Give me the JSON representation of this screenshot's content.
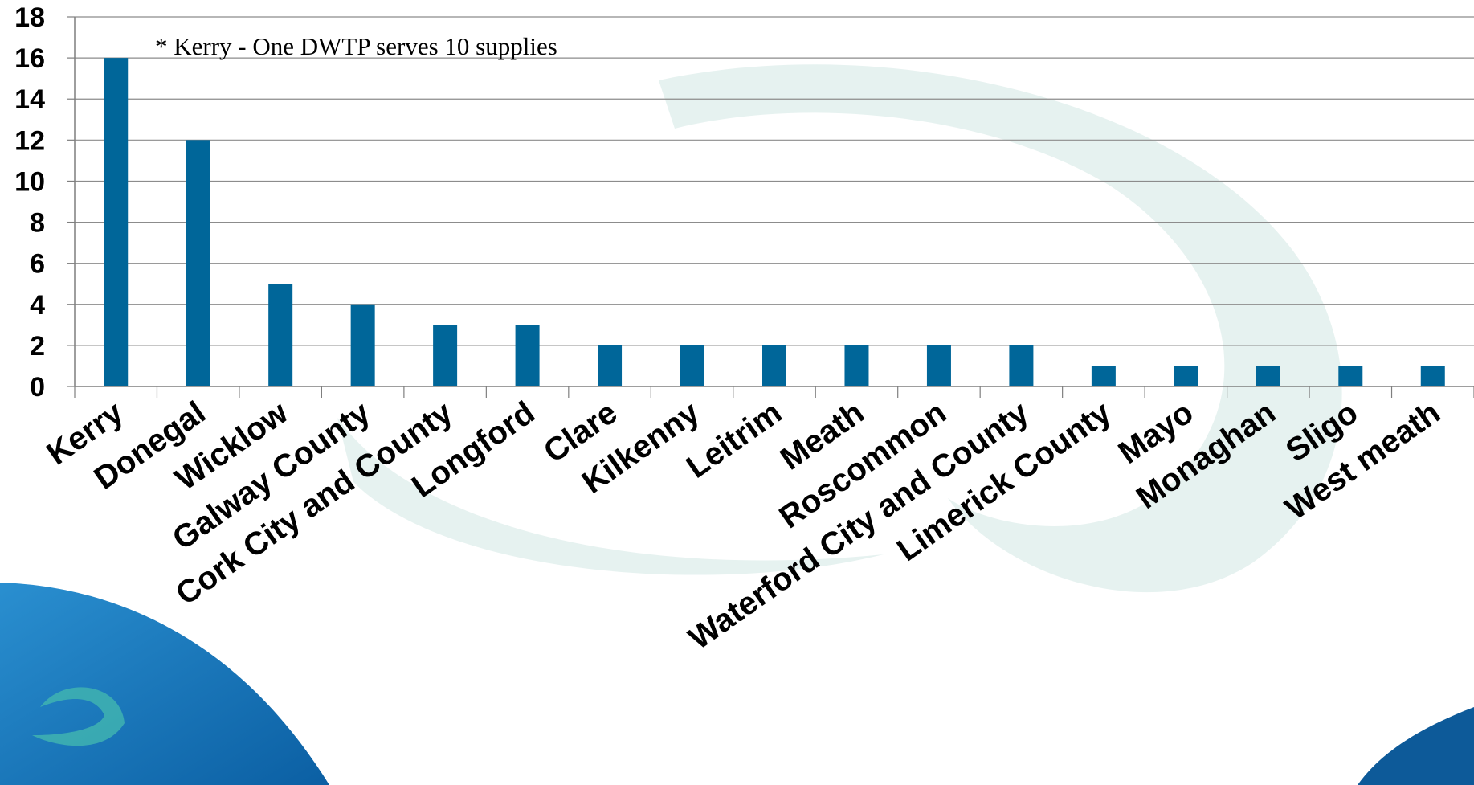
{
  "chart_data": {
    "type": "bar",
    "title": "",
    "xlabel": "",
    "ylabel": "",
    "categories": [
      "Kerry",
      "Donegal",
      "Wicklow",
      "Galway County",
      "Cork City and County",
      "Longford",
      "Clare",
      "Kilkenny",
      "Leitrim",
      "Meath",
      "Roscommon",
      "Waterford City and County",
      "Limerick County",
      "Mayo",
      "Monaghan",
      "Sligo",
      "West meath"
    ],
    "values": [
      16,
      12,
      5,
      4,
      3,
      3,
      2,
      2,
      2,
      2,
      2,
      2,
      1,
      1,
      1,
      1,
      1
    ],
    "ylim": [
      0,
      18
    ],
    "yticks": [
      0,
      2,
      4,
      6,
      8,
      10,
      12,
      14,
      16,
      18
    ],
    "grid": true,
    "legend": "none",
    "annotation": "*  Kerry - One DWTP serves 10 supplies",
    "colors": {
      "bar": "#006699",
      "grid": "#8c8c8c",
      "axis": "#7f7f7f",
      "watermark": "#dcefeb",
      "brand_blue": "#1e7fc0",
      "brand_blue_dark": "#0d5a99"
    }
  }
}
